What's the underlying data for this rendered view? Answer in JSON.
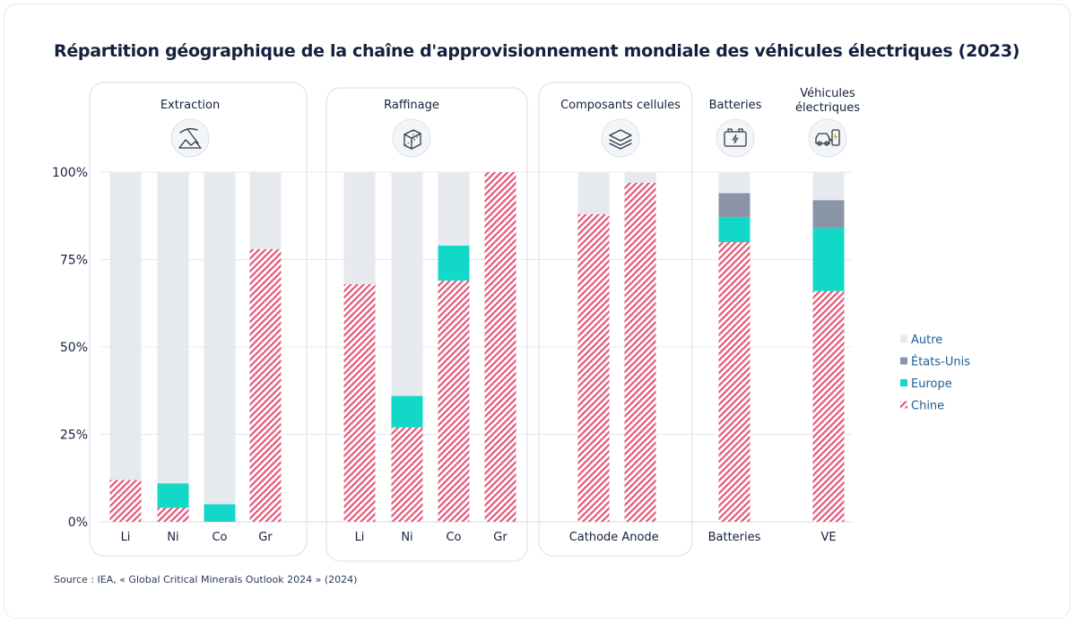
{
  "title": "Répartition géographique de la chaîne d'approvisionnement mondiale des véhicules électriques (2023)",
  "source": "Source : IEA, « Global Critical Minerals Outlook 2024 » (2024)",
  "colors": {
    "chine": "#e4587a",
    "europe": "#12d8c8",
    "etats_unis": "#8a95a8",
    "autre": "#e6e9ee",
    "text": "#14213d",
    "legend_text": "#1c5f96",
    "panel_border": "#dfe3ea"
  },
  "chart_data": {
    "type": "bar",
    "stacked": true,
    "title": "Répartition géographique de la chaîne d'approvisionnement mondiale des véhicules électriques (2023)",
    "ylim": [
      0,
      100
    ],
    "yticks": [
      "0%",
      "25%",
      "50%",
      "75%",
      "100%"
    ],
    "legend_position": "right",
    "legend": [
      {
        "key": "autre",
        "label": "Autre",
        "icon": "square",
        "color": "#e6e9ee"
      },
      {
        "key": "etats_unis",
        "label": "États-Unis",
        "icon": "square",
        "color": "#8a95a8"
      },
      {
        "key": "europe",
        "label": "Europe",
        "icon": "square",
        "color": "#12d8c8"
      },
      {
        "key": "chine",
        "label": "Chine",
        "icon": "hatched",
        "color": "#e4587a"
      }
    ],
    "groups": [
      {
        "key": "extraction",
        "title": [
          "Extraction"
        ],
        "icon": "mining-pickaxe-icon",
        "bars": [
          {
            "label": "Li",
            "chine": 12,
            "europe": 0,
            "etats_unis": 0,
            "autre": 88
          },
          {
            "label": "Ni",
            "chine": 4,
            "europe": 7,
            "etats_unis": 0,
            "autre": 89
          },
          {
            "label": "Co",
            "chine": 0,
            "europe": 5,
            "etats_unis": 0,
            "autre": 95
          },
          {
            "label": "Gr",
            "chine": 78,
            "europe": 0,
            "etats_unis": 0,
            "autre": 22
          }
        ]
      },
      {
        "key": "raffinage",
        "title": [
          "Raffinage"
        ],
        "icon": "cube-icon",
        "bars": [
          {
            "label": "Li",
            "chine": 68,
            "europe": 0,
            "etats_unis": 0,
            "autre": 32
          },
          {
            "label": "Ni",
            "chine": 27,
            "europe": 9,
            "etats_unis": 0,
            "autre": 64
          },
          {
            "label": "Co",
            "chine": 69,
            "europe": 10,
            "etats_unis": 0,
            "autre": 21
          },
          {
            "label": "Gr",
            "chine": 100,
            "europe": 0,
            "etats_unis": 0,
            "autre": 0
          }
        ]
      },
      {
        "key": "composants",
        "title": [
          "Composants cellules"
        ],
        "icon": "layers-icon",
        "bars": [
          {
            "label": "Cathode",
            "chine": 88,
            "europe": 0,
            "etats_unis": 0,
            "autre": 12
          },
          {
            "label": "Anode",
            "chine": 97,
            "europe": 0,
            "etats_unis": 0,
            "autre": 3
          }
        ]
      },
      {
        "key": "batteries",
        "title": [
          "Batteries"
        ],
        "icon": "battery-icon",
        "bars": [
          {
            "label": "Batteries",
            "chine": 80,
            "europe": 7,
            "etats_unis": 7,
            "autre": 6
          }
        ]
      },
      {
        "key": "ve",
        "title": [
          "Véhicules",
          "électriques"
        ],
        "icon": "ev-charging-icon",
        "bars": [
          {
            "label": "VE",
            "chine": 66,
            "europe": 18,
            "etats_unis": 8,
            "autre": 8
          }
        ]
      }
    ]
  }
}
